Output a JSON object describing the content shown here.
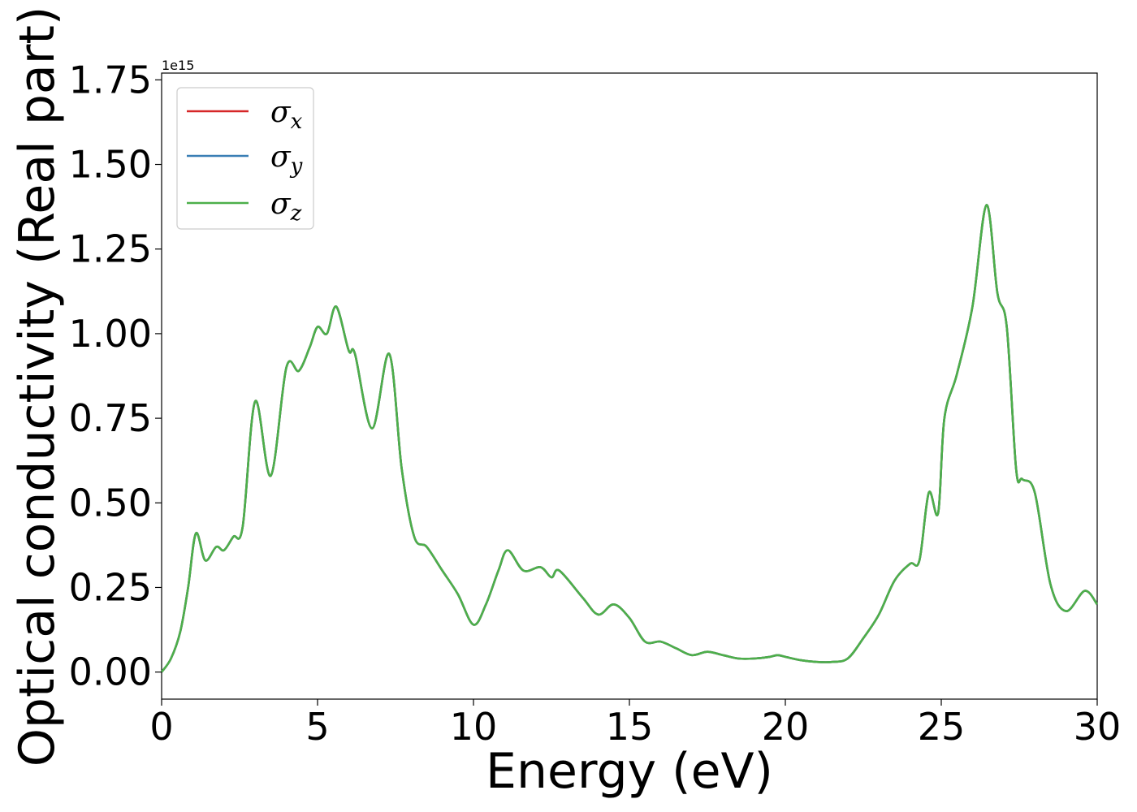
{
  "chart_data": {
    "type": "line",
    "title": "",
    "xlabel": "Energy (eV)",
    "ylabel": "Optical conductivity (Real part)",
    "offset_text": "1e15",
    "xlim": [
      0,
      30
    ],
    "ylim": [
      -0.08,
      1.77
    ],
    "xticks": [
      0,
      5,
      10,
      15,
      20,
      25,
      30
    ],
    "xtick_labels": [
      "0",
      "5",
      "10",
      "15",
      "20",
      "25",
      "30"
    ],
    "yticks": [
      0.0,
      0.25,
      0.5,
      0.75,
      1.0,
      1.25,
      1.5,
      1.75
    ],
    "ytick_labels": [
      "0.00",
      "0.25",
      "0.50",
      "0.75",
      "1.00",
      "1.25",
      "1.50",
      "1.75"
    ],
    "grid": false,
    "legend_position": "top-left",
    "x": [
      0,
      0.3,
      0.6,
      0.85,
      1.1,
      1.4,
      1.75,
      2.0,
      2.3,
      2.6,
      3.0,
      3.5,
      4.0,
      4.4,
      4.75,
      5.0,
      5.3,
      5.6,
      6.0,
      6.2,
      6.75,
      7.3,
      7.7,
      8.1,
      8.5,
      9.0,
      9.5,
      10.0,
      10.4,
      10.8,
      11.1,
      11.6,
      12.15,
      12.5,
      12.75,
      13.5,
      14.0,
      14.5,
      15.0,
      15.5,
      16.0,
      16.5,
      17.0,
      17.5,
      18.0,
      18.5,
      19.0,
      19.5,
      19.75,
      20.0,
      20.5,
      21.0,
      21.5,
      22.0,
      22.5,
      23.0,
      23.5,
      24.0,
      24.3,
      24.6,
      24.9,
      25.1,
      25.5,
      26.0,
      26.45,
      26.8,
      27.1,
      27.4,
      27.6,
      28.0,
      28.5,
      29.0,
      29.6,
      30.0
    ],
    "series": [
      {
        "name": "σx",
        "color": "#d62728",
        "values": [
          0.0,
          0.04,
          0.12,
          0.25,
          0.41,
          0.33,
          0.37,
          0.36,
          0.4,
          0.43,
          0.8,
          0.58,
          0.9,
          0.89,
          0.96,
          1.02,
          1.0,
          1.08,
          0.95,
          0.94,
          0.72,
          0.94,
          0.6,
          0.4,
          0.37,
          0.3,
          0.23,
          0.14,
          0.2,
          0.3,
          0.36,
          0.3,
          0.31,
          0.28,
          0.3,
          0.22,
          0.17,
          0.2,
          0.16,
          0.09,
          0.09,
          0.07,
          0.05,
          0.06,
          0.05,
          0.04,
          0.04,
          0.045,
          0.05,
          0.045,
          0.035,
          0.03,
          0.03,
          0.04,
          0.1,
          0.17,
          0.27,
          0.32,
          0.33,
          0.53,
          0.47,
          0.75,
          0.88,
          1.08,
          1.38,
          1.12,
          1.02,
          0.6,
          0.57,
          0.53,
          0.26,
          0.18,
          0.24,
          0.2
        ]
      },
      {
        "name": "σy",
        "color": "#3a7fb5",
        "values": [
          0.0,
          0.04,
          0.12,
          0.25,
          0.41,
          0.33,
          0.37,
          0.36,
          0.4,
          0.43,
          0.8,
          0.58,
          0.9,
          0.89,
          0.96,
          1.02,
          1.0,
          1.08,
          0.95,
          0.94,
          0.72,
          0.94,
          0.6,
          0.4,
          0.37,
          0.3,
          0.23,
          0.14,
          0.2,
          0.3,
          0.36,
          0.3,
          0.31,
          0.28,
          0.3,
          0.22,
          0.17,
          0.2,
          0.16,
          0.09,
          0.09,
          0.07,
          0.05,
          0.06,
          0.05,
          0.04,
          0.04,
          0.045,
          0.05,
          0.045,
          0.035,
          0.03,
          0.03,
          0.04,
          0.1,
          0.17,
          0.27,
          0.32,
          0.33,
          0.53,
          0.47,
          0.75,
          0.88,
          1.08,
          1.38,
          1.12,
          1.02,
          0.6,
          0.57,
          0.53,
          0.26,
          0.18,
          0.24,
          0.2
        ]
      },
      {
        "name": "σz",
        "color": "#4daf4a",
        "values": [
          0.0,
          0.04,
          0.12,
          0.25,
          0.41,
          0.33,
          0.37,
          0.36,
          0.4,
          0.43,
          0.8,
          0.58,
          0.9,
          0.89,
          0.96,
          1.02,
          1.0,
          1.08,
          0.95,
          0.94,
          0.72,
          0.94,
          0.6,
          0.4,
          0.37,
          0.3,
          0.23,
          0.14,
          0.2,
          0.3,
          0.36,
          0.3,
          0.31,
          0.28,
          0.3,
          0.22,
          0.17,
          0.2,
          0.16,
          0.09,
          0.09,
          0.07,
          0.05,
          0.06,
          0.05,
          0.04,
          0.04,
          0.045,
          0.05,
          0.045,
          0.035,
          0.03,
          0.03,
          0.04,
          0.1,
          0.17,
          0.27,
          0.32,
          0.33,
          0.53,
          0.47,
          0.75,
          0.88,
          1.08,
          1.38,
          1.12,
          1.02,
          0.6,
          0.57,
          0.53,
          0.26,
          0.18,
          0.24,
          0.2
        ]
      }
    ],
    "legend": [
      {
        "base": "σ",
        "sub": "x"
      },
      {
        "base": "σ",
        "sub": "y"
      },
      {
        "base": "σ",
        "sub": "z"
      }
    ]
  }
}
